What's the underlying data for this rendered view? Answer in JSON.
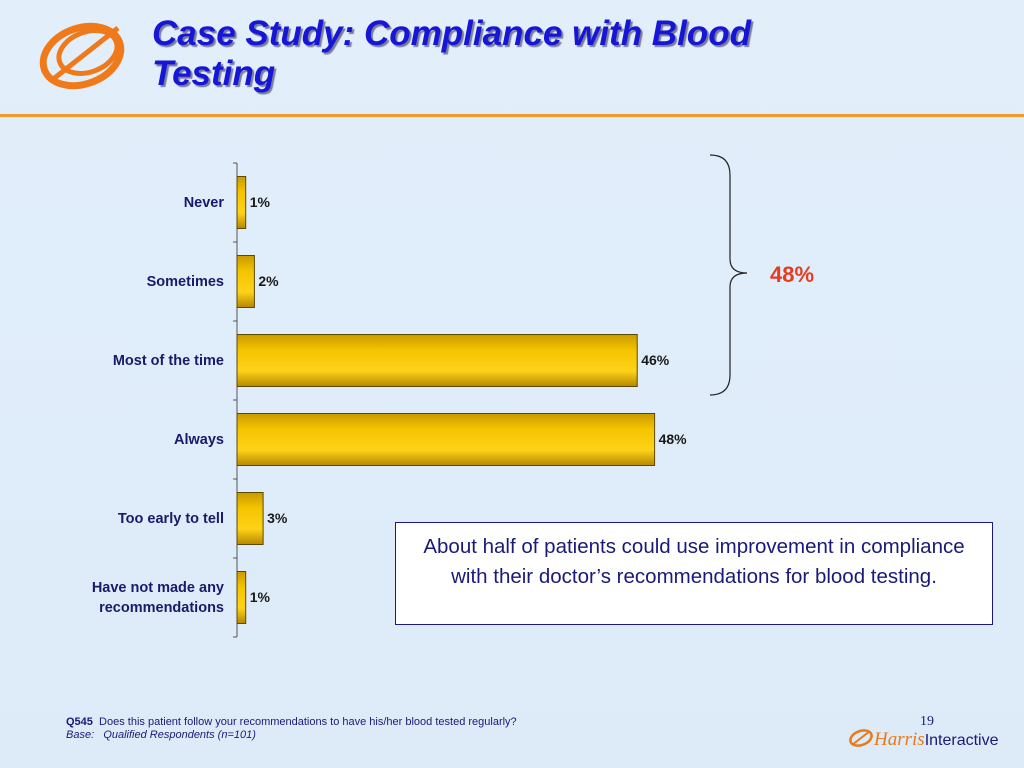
{
  "title": "Case Study:  Compliance with Blood Testing",
  "chart_data": {
    "type": "bar",
    "orientation": "horizontal",
    "categories": [
      "Never",
      "Sometimes",
      "Most of the time",
      "Always",
      "Too early to tell",
      "Have not made any recommendations"
    ],
    "values": [
      1,
      2,
      46,
      48,
      3,
      1
    ],
    "value_labels": [
      "1%",
      "2%",
      "46%",
      "48%",
      "3%",
      "1%"
    ],
    "xlim": [
      0,
      100
    ],
    "grid": false,
    "bracket_label": "48%",
    "colors": {
      "bar": "#f5c400",
      "bar_border": "#5a4a00",
      "bracket_label": "#e83a1e"
    }
  },
  "note": "About half of patients could use improvement in compliance with their doctor’s recommendations for blood testing.",
  "footer": {
    "question_id": "Q545",
    "question_text": "Does this patient follow your recommendations to have his/her blood tested regularly?",
    "base_label": "Base:",
    "base_text": "Qualified Respondents (n=101)"
  },
  "page_number": "19",
  "brand": {
    "harris": "Harris",
    "interactive": "Interactive"
  },
  "icons": [
    "harris-logo-icon",
    "brand-logo-icon"
  ]
}
